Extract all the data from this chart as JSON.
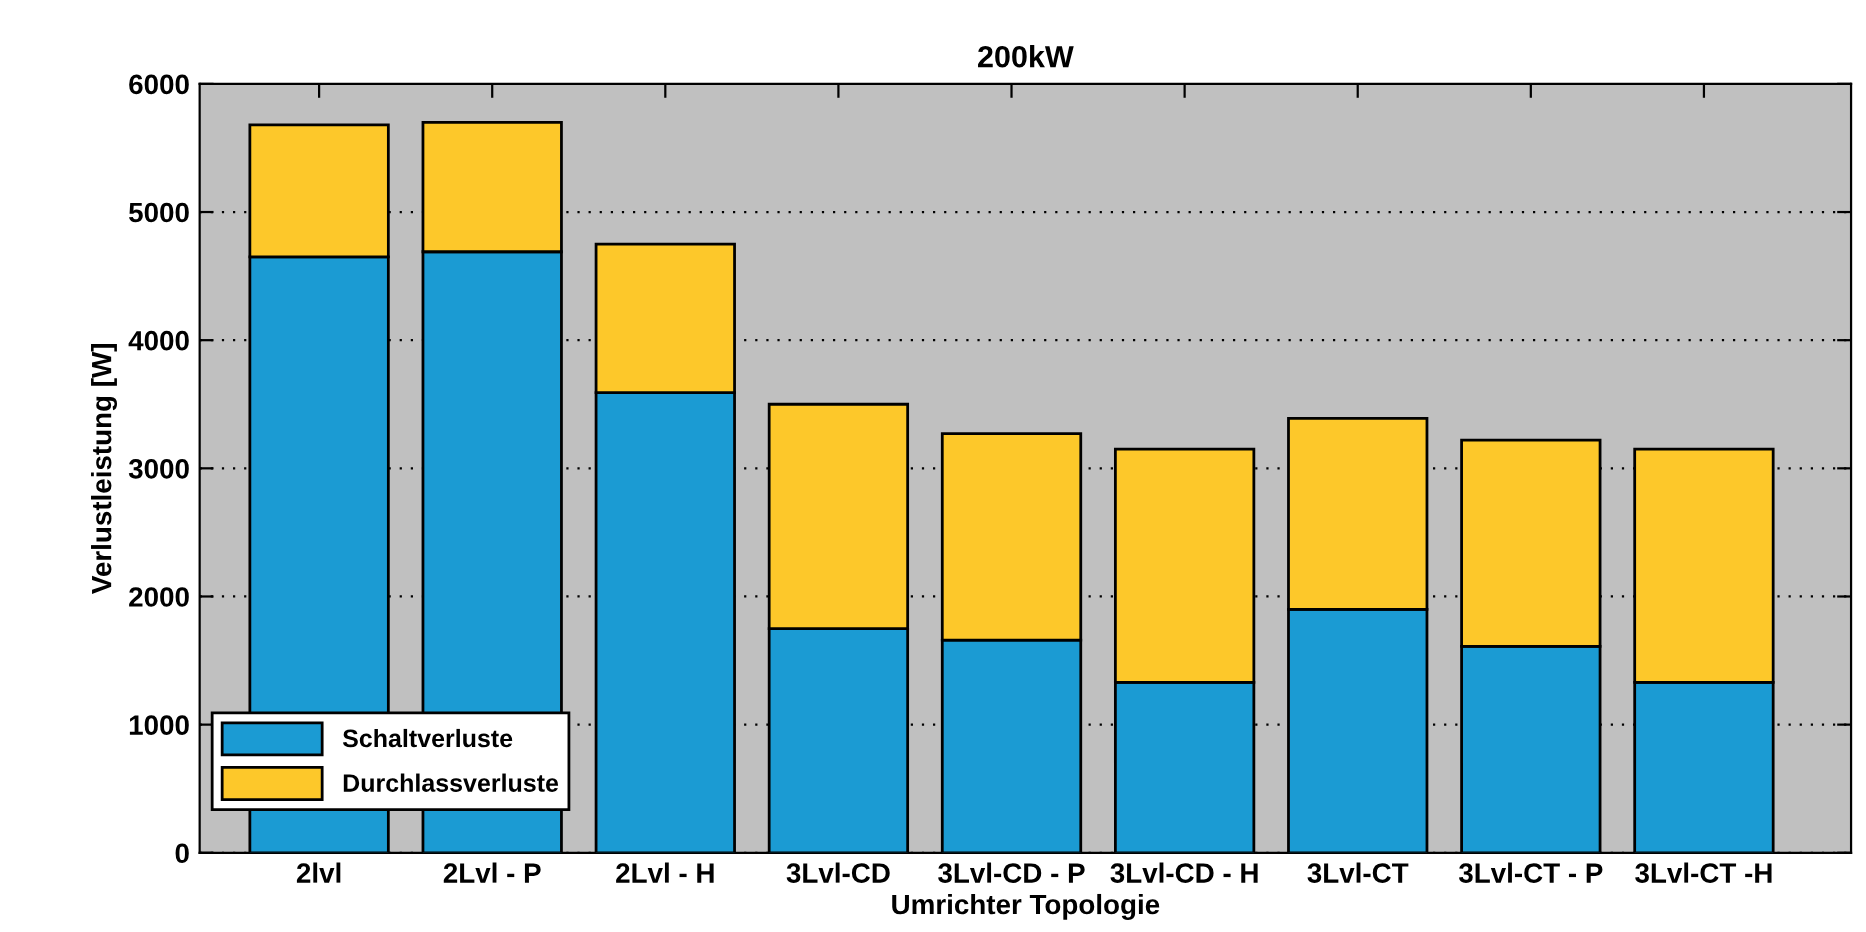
{
  "chart_data": {
    "type": "bar",
    "title": "200kW",
    "xlabel": "Umrichter Topologie",
    "ylabel": "Verlustleistung [W]",
    "categories": [
      "2lvl",
      "2Lvl - P",
      "2Lvl - H",
      "3Lvl-CD",
      "3Lvl-CD - P",
      "3Lvl-CD - H",
      "3Lvl-CT",
      "3Lvl-CT - P",
      "3Lvl-CT -H"
    ],
    "stacked": true,
    "series": [
      {
        "name": "Schaltverluste",
        "color": "#1b9bd3",
        "values": [
          4650,
          4690,
          3590,
          1750,
          1660,
          1330,
          1900,
          1610,
          1330
        ]
      },
      {
        "name": "Durchlassverluste",
        "color": "#fdc82a",
        "values": [
          1030,
          1010,
          1160,
          1750,
          1610,
          1820,
          1490,
          1610,
          1820
        ]
      }
    ],
    "ylim": [
      0,
      6000
    ],
    "yticks": [
      0,
      1000,
      2000,
      3000,
      4000,
      5000,
      6000
    ],
    "grid": "y",
    "legend": "bottom left"
  }
}
